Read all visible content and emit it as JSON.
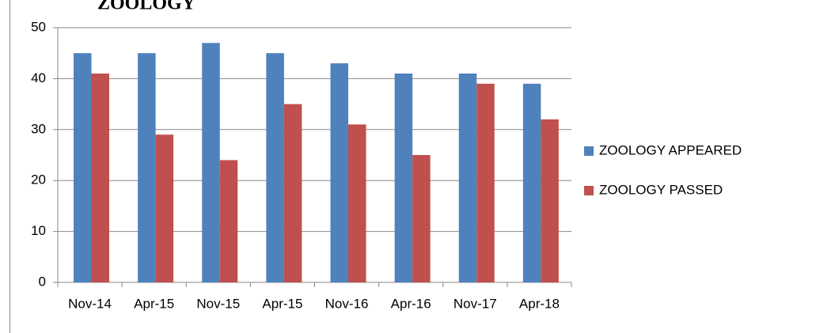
{
  "chart_data": {
    "type": "bar",
    "title": "ZOOLOGY",
    "categories": [
      "Nov-14",
      "Apr-15",
      "Nov-15",
      "Apr-15",
      "Nov-16",
      "Apr-16",
      "Nov-17",
      "Apr-18"
    ],
    "series": [
      {
        "name": "ZOOLOGY APPEARED",
        "color": "#4f81bd",
        "values": [
          45,
          45,
          47,
          45,
          43,
          41,
          41,
          39
        ]
      },
      {
        "name": "ZOOLOGY PASSED",
        "color": "#c0504d",
        "values": [
          41,
          29,
          24,
          35,
          31,
          25,
          39,
          32
        ]
      }
    ],
    "ylim": [
      0,
      50
    ],
    "yticks": [
      0,
      10,
      20,
      30,
      40,
      50
    ],
    "grid": true,
    "legend": "right"
  }
}
